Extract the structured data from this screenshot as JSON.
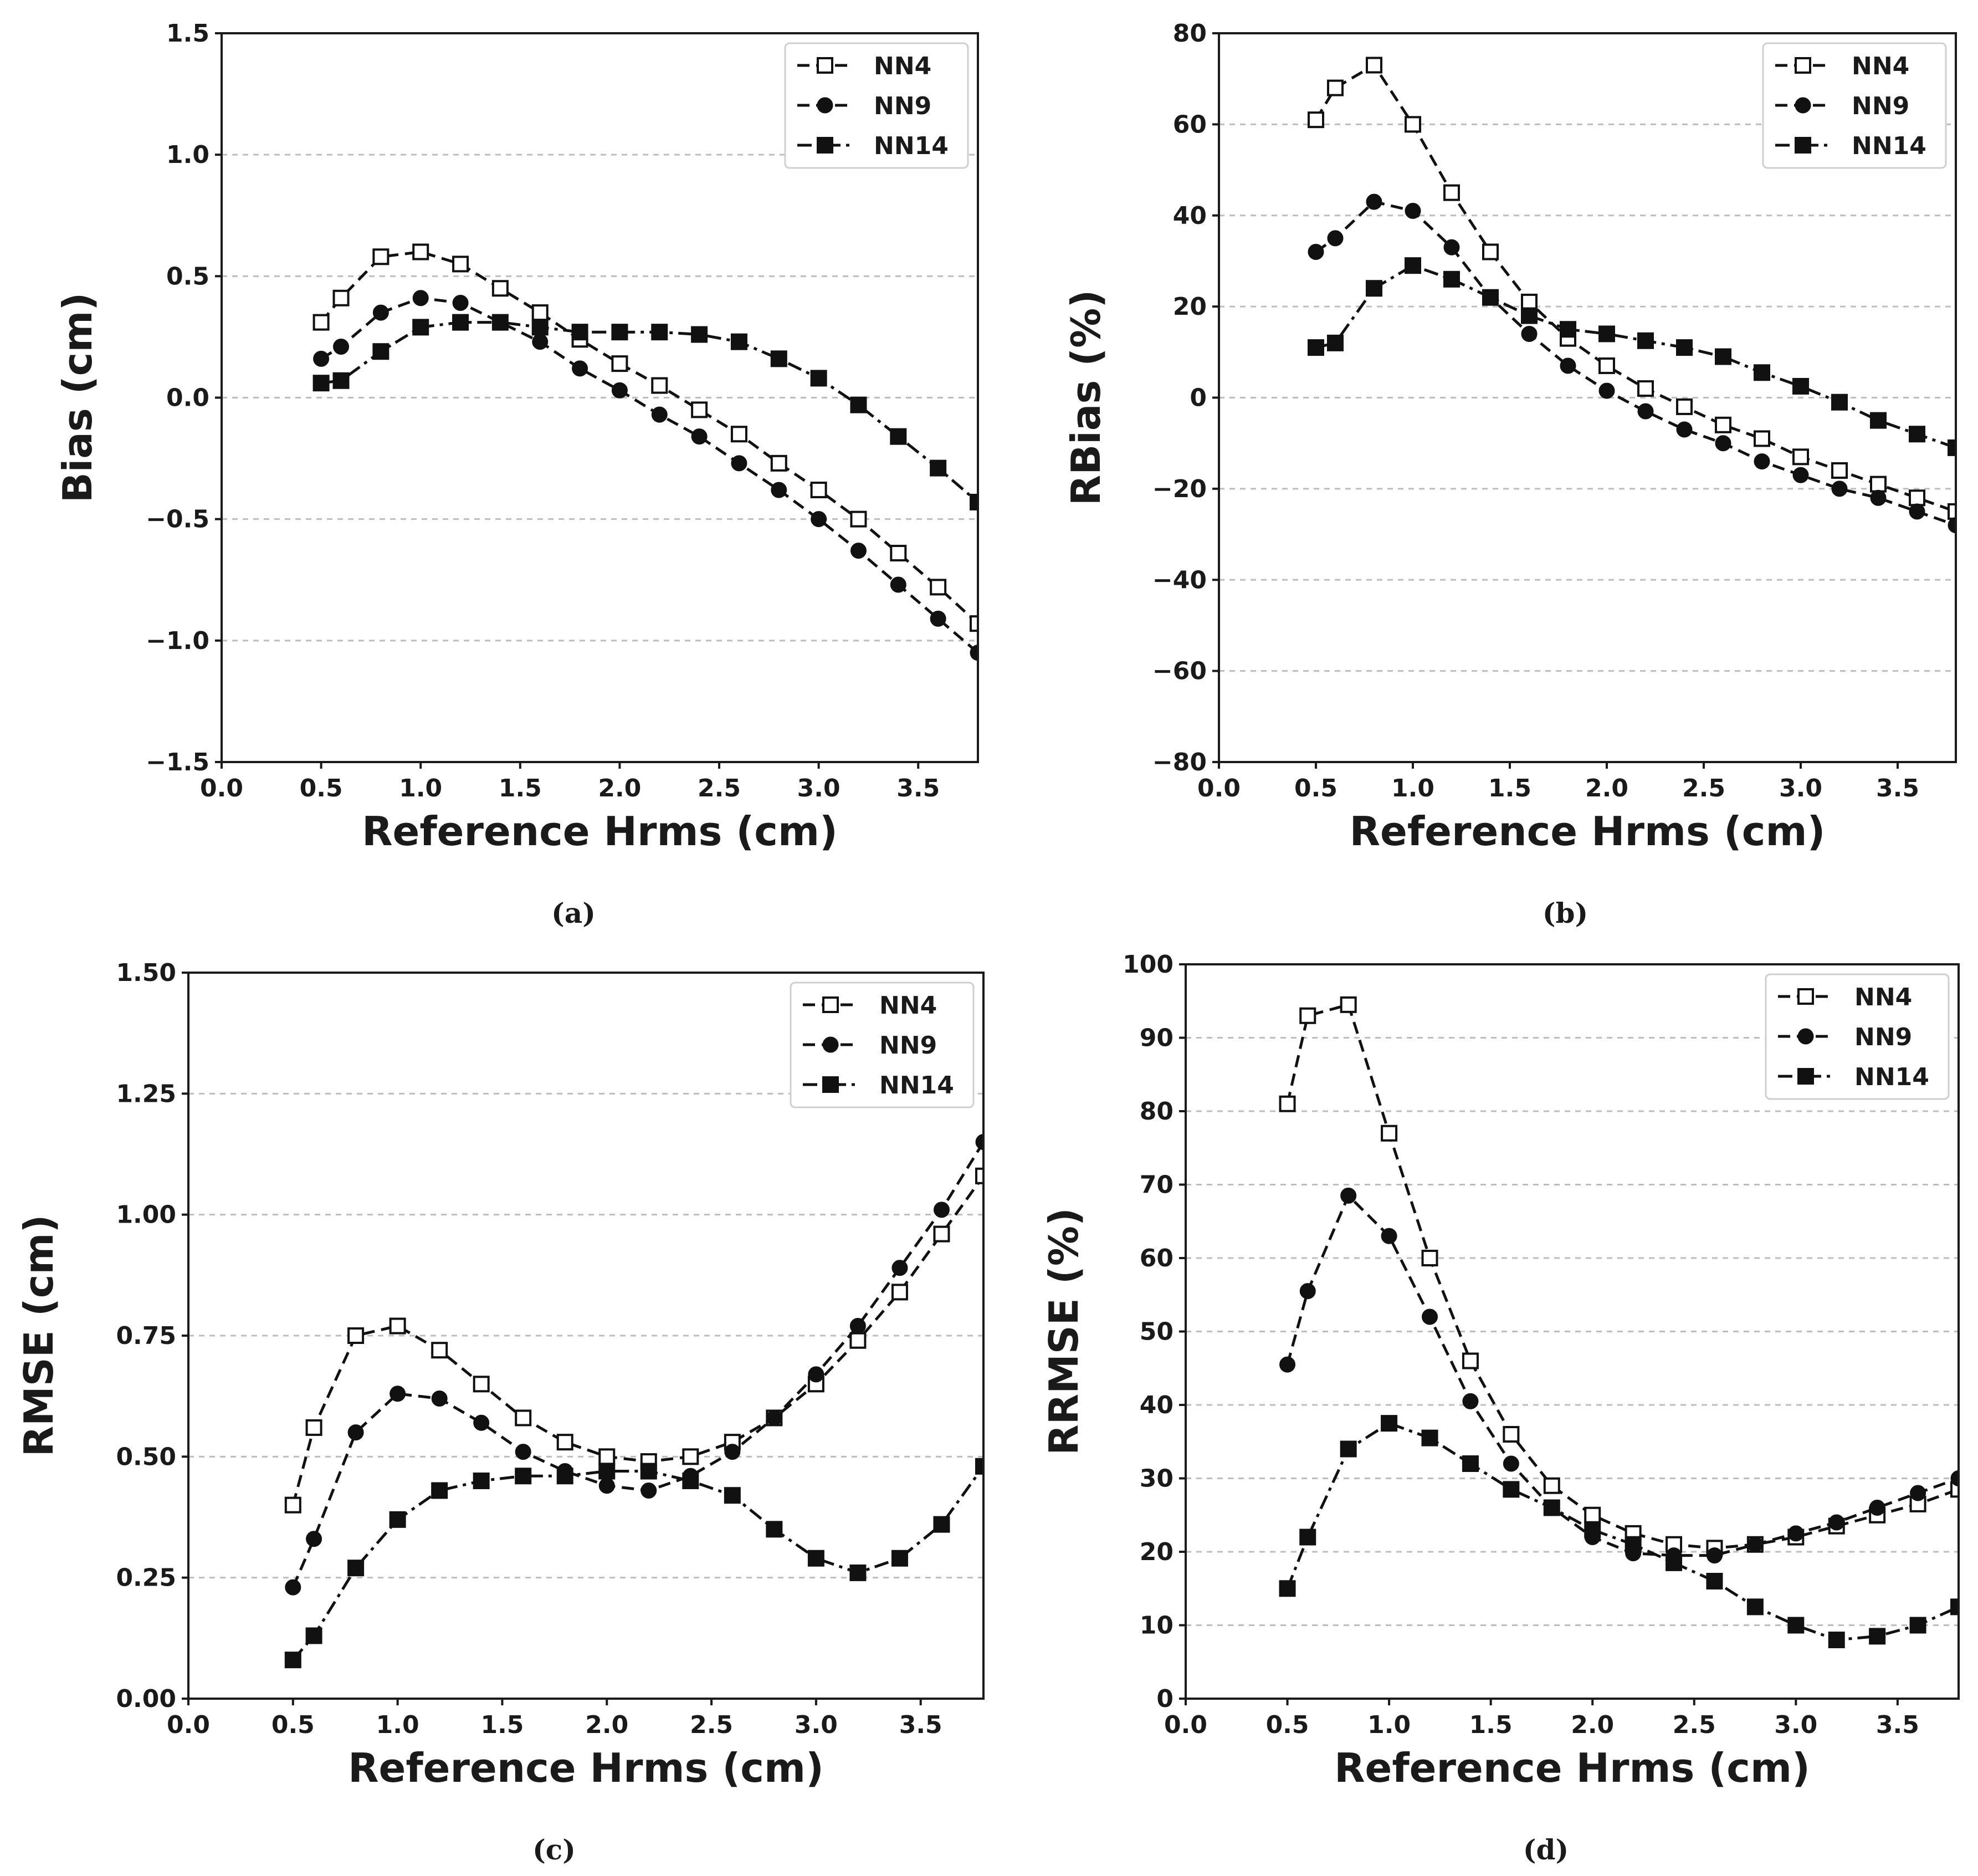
{
  "chart_data": [
    {
      "id": "a",
      "type": "line",
      "caption": "(a)",
      "xlabel": "Reference Hrms (cm)",
      "ylabel": "Bias (cm)",
      "xlim": [
        0,
        3.8
      ],
      "ylim": [
        -1.5,
        1.5
      ],
      "xticks": [
        "0.0",
        "0.5",
        "1.0",
        "1.5",
        "2.0",
        "2.5",
        "3.0",
        "3.5"
      ],
      "xtick_values": [
        0,
        0.5,
        1.0,
        1.5,
        2.0,
        2.5,
        3.0,
        3.5
      ],
      "yticks": [
        "−1.5",
        "−1.0",
        "−0.5",
        "0.0",
        "0.5",
        "1.0",
        "1.5"
      ],
      "ytick_values": [
        -1.5,
        -1.0,
        -0.5,
        0.0,
        0.5,
        1.0,
        1.5
      ],
      "grid": true,
      "legend_position": "top-right",
      "x": [
        0.5,
        0.6,
        0.8,
        1.0,
        1.2,
        1.4,
        1.6,
        1.8,
        2.0,
        2.2,
        2.4,
        2.6,
        2.8,
        3.0,
        3.2,
        3.4,
        3.6,
        3.8
      ],
      "series": [
        {
          "name": "NN4",
          "marker": "open-square",
          "dash": "dashed",
          "values": [
            0.31,
            0.41,
            0.58,
            0.6,
            0.55,
            0.45,
            0.35,
            0.24,
            0.14,
            0.05,
            -0.05,
            -0.15,
            -0.27,
            -0.38,
            -0.5,
            -0.64,
            -0.78,
            -0.93
          ]
        },
        {
          "name": "NN9",
          "marker": "circle",
          "dash": "dashed",
          "values": [
            0.16,
            0.21,
            0.35,
            0.41,
            0.39,
            0.31,
            0.23,
            0.12,
            0.03,
            -0.07,
            -0.16,
            -0.27,
            -0.38,
            -0.5,
            -0.63,
            -0.77,
            -0.91,
            -1.05
          ]
        },
        {
          "name": "NN14",
          "marker": "filled-square",
          "dash": "dashdot",
          "values": [
            0.06,
            0.07,
            0.19,
            0.29,
            0.31,
            0.31,
            0.29,
            0.27,
            0.27,
            0.27,
            0.26,
            0.23,
            0.16,
            0.08,
            -0.03,
            -0.16,
            -0.29,
            -0.43
          ]
        }
      ]
    },
    {
      "id": "b",
      "type": "line",
      "caption": "(b)",
      "xlabel": "Reference Hrms (cm)",
      "ylabel": "RBias (%)",
      "xlim": [
        0,
        3.8
      ],
      "ylim": [
        -80,
        80
      ],
      "xticks": [
        "0.0",
        "0.5",
        "1.0",
        "1.5",
        "2.0",
        "2.5",
        "3.0",
        "3.5"
      ],
      "xtick_values": [
        0,
        0.5,
        1.0,
        1.5,
        2.0,
        2.5,
        3.0,
        3.5
      ],
      "yticks": [
        "−80",
        "−60",
        "−40",
        "−20",
        "0",
        "20",
        "40",
        "60",
        "80"
      ],
      "ytick_values": [
        -80,
        -60,
        -40,
        -20,
        0,
        20,
        40,
        60,
        80
      ],
      "grid": true,
      "legend_position": "top-right",
      "x": [
        0.5,
        0.6,
        0.8,
        1.0,
        1.2,
        1.4,
        1.6,
        1.8,
        2.0,
        2.2,
        2.4,
        2.6,
        2.8,
        3.0,
        3.2,
        3.4,
        3.6,
        3.8
      ],
      "series": [
        {
          "name": "NN4",
          "marker": "open-square",
          "dash": "dashed",
          "values": [
            61,
            68,
            73,
            60,
            45,
            32,
            21,
            13,
            7,
            2,
            -2,
            -6,
            -9,
            -13,
            -16,
            -19,
            -22,
            -25
          ]
        },
        {
          "name": "NN9",
          "marker": "circle",
          "dash": "dashed",
          "values": [
            32,
            35,
            43,
            41,
            33,
            22,
            14,
            7,
            1.5,
            -3,
            -7,
            -10,
            -14,
            -17,
            -20,
            -22,
            -25,
            -28
          ]
        },
        {
          "name": "NN14",
          "marker": "filled-square",
          "dash": "dashdot",
          "values": [
            11,
            12,
            24,
            29,
            26,
            22,
            18,
            15,
            14,
            12.5,
            11,
            9,
            5.5,
            2.5,
            -1,
            -5,
            -8,
            -11
          ]
        }
      ]
    },
    {
      "id": "c",
      "type": "line",
      "caption": "(c)",
      "xlabel": "Reference Hrms (cm)",
      "ylabel": "RMSE (cm)",
      "xlim": [
        0,
        3.8
      ],
      "ylim": [
        0,
        1.5
      ],
      "xticks": [
        "0.0",
        "0.5",
        "1.0",
        "1.5",
        "2.0",
        "2.5",
        "3.0",
        "3.5"
      ],
      "xtick_values": [
        0,
        0.5,
        1.0,
        1.5,
        2.0,
        2.5,
        3.0,
        3.5
      ],
      "yticks": [
        "0.00",
        "0.25",
        "0.50",
        "0.75",
        "1.00",
        "1.25",
        "1.50"
      ],
      "ytick_values": [
        0,
        0.25,
        0.5,
        0.75,
        1.0,
        1.25,
        1.5
      ],
      "grid": true,
      "legend_position": "top-right",
      "x": [
        0.5,
        0.6,
        0.8,
        1.0,
        1.2,
        1.4,
        1.6,
        1.8,
        2.0,
        2.2,
        2.4,
        2.6,
        2.8,
        3.0,
        3.2,
        3.4,
        3.6,
        3.8
      ],
      "series": [
        {
          "name": "NN4",
          "marker": "open-square",
          "dash": "dashed",
          "values": [
            0.4,
            0.56,
            0.75,
            0.77,
            0.72,
            0.65,
            0.58,
            0.53,
            0.5,
            0.49,
            0.5,
            0.53,
            0.58,
            0.65,
            0.74,
            0.84,
            0.96,
            1.08
          ]
        },
        {
          "name": "NN9",
          "marker": "circle",
          "dash": "dashed",
          "values": [
            0.23,
            0.33,
            0.55,
            0.63,
            0.62,
            0.57,
            0.51,
            0.47,
            0.44,
            0.43,
            0.46,
            0.51,
            0.58,
            0.67,
            0.77,
            0.89,
            1.01,
            1.15
          ]
        },
        {
          "name": "NN14",
          "marker": "filled-square",
          "dash": "dashdot",
          "values": [
            0.08,
            0.13,
            0.27,
            0.37,
            0.43,
            0.45,
            0.46,
            0.46,
            0.47,
            0.47,
            0.45,
            0.42,
            0.35,
            0.29,
            0.26,
            0.29,
            0.36,
            0.48
          ]
        }
      ]
    },
    {
      "id": "d",
      "type": "line",
      "caption": "(d)",
      "xlabel": "Reference Hrms (cm)",
      "ylabel": "RRMSE (%)",
      "xlim": [
        0,
        3.8
      ],
      "ylim": [
        0,
        100
      ],
      "xticks": [
        "0.0",
        "0.5",
        "1.0",
        "1.5",
        "2.0",
        "2.5",
        "3.0",
        "3.5"
      ],
      "xtick_values": [
        0,
        0.5,
        1.0,
        1.5,
        2.0,
        2.5,
        3.0,
        3.5
      ],
      "yticks": [
        "0",
        "10",
        "20",
        "30",
        "40",
        "50",
        "60",
        "70",
        "80",
        "90",
        "100"
      ],
      "ytick_values": [
        0,
        10,
        20,
        30,
        40,
        50,
        60,
        70,
        80,
        90,
        100
      ],
      "grid": true,
      "legend_position": "top-right",
      "x": [
        0.5,
        0.6,
        0.8,
        1.0,
        1.2,
        1.4,
        1.6,
        1.8,
        2.0,
        2.2,
        2.4,
        2.6,
        2.8,
        3.0,
        3.2,
        3.4,
        3.6,
        3.8
      ],
      "series": [
        {
          "name": "NN4",
          "marker": "open-square",
          "dash": "dashed",
          "values": [
            81,
            93,
            94.5,
            77,
            60,
            46,
            36,
            29,
            25,
            22.5,
            21,
            20.5,
            21,
            22,
            23.5,
            25,
            26.5,
            28.5
          ]
        },
        {
          "name": "NN9",
          "marker": "circle",
          "dash": "dashed",
          "values": [
            45.5,
            55.5,
            68.5,
            63,
            52,
            40.5,
            32,
            26,
            22,
            19.8,
            19.5,
            19.5,
            21,
            22.5,
            24,
            26,
            28,
            30
          ]
        },
        {
          "name": "NN14",
          "marker": "filled-square",
          "dash": "dashdot",
          "values": [
            15,
            22,
            34,
            37.5,
            35.5,
            32,
            28.5,
            26,
            23,
            21,
            18.5,
            16,
            12.5,
            10,
            8,
            8.5,
            10,
            12.5
          ]
        }
      ]
    }
  ]
}
